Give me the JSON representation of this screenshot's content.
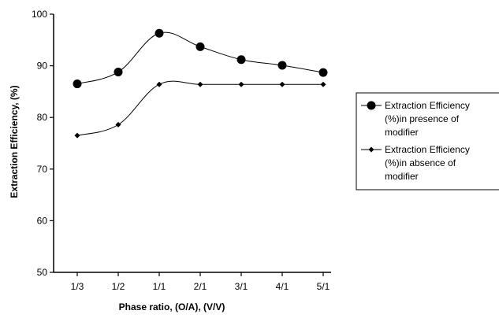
{
  "chart_data": {
    "type": "line",
    "title": "",
    "xlabel": "Phase ratio, (O/A), (V/V)",
    "ylabel": "Extraction Efficiency, (%)",
    "categories": [
      "1/3",
      "1/2",
      "1/1",
      "2/1",
      "3/1",
      "4/1",
      "5/1"
    ],
    "ylim": [
      50,
      100
    ],
    "yticks": [
      50,
      60,
      70,
      80,
      90,
      100
    ],
    "grid": false,
    "legend_position": "right",
    "series": [
      {
        "name_lines": [
          "Extraction Efficiency",
          "(%)in presence of",
          "modifier"
        ],
        "values": [
          86.5,
          88.8,
          96.3,
          93.7,
          91.2,
          90.1,
          88.7
        ],
        "marker": "circle",
        "color": "#000000"
      },
      {
        "name_lines": [
          "Extraction Efficiency",
          "(%)in absence of",
          "modifier"
        ],
        "values": [
          76.5,
          78.6,
          86.4,
          86.4,
          86.4,
          86.4,
          86.4
        ],
        "marker": "diamond",
        "color": "#000000"
      }
    ]
  }
}
